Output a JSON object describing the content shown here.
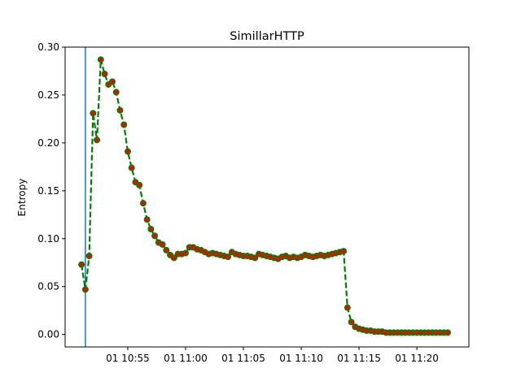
{
  "chart_data": {
    "type": "line",
    "title": "SimillarHTTP",
    "xlabel": "",
    "ylabel": "Entropy",
    "x_unit": "time (HH:MM, minutes)",
    "xlim": [
      "10:49:35",
      "11:24:30"
    ],
    "ylim": [
      -0.013,
      0.3
    ],
    "x_ticks": [
      {
        "t": "10:55",
        "label": "01 10:55"
      },
      {
        "t": "11:00",
        "label": "01 11:00"
      },
      {
        "t": "11:05",
        "label": "01 11:05"
      },
      {
        "t": "11:10",
        "label": "01 11:10"
      },
      {
        "t": "11:15",
        "label": "01 11:15"
      },
      {
        "t": "11:20",
        "label": "01 11:20"
      }
    ],
    "y_ticks": [
      0.0,
      0.05,
      0.1,
      0.15,
      0.2,
      0.25,
      0.3
    ],
    "y_tick_labels": [
      "0.00",
      "0.05",
      "0.10",
      "0.15",
      "0.20",
      "0.25",
      "0.30"
    ],
    "vertical_line": {
      "x": "10:51:20",
      "color": "#1f77b4"
    },
    "series": [
      {
        "line_color": "#008000",
        "line_style": "dashed",
        "marker_fill": "#ff0000",
        "marker_edge": "#008000",
        "points": [
          [
            "10:51:00",
            0.073
          ],
          [
            "10:51:20",
            0.047
          ],
          [
            "10:51:40",
            0.082
          ],
          [
            "10:52:00",
            0.231
          ],
          [
            "10:52:20",
            0.203
          ],
          [
            "10:52:40",
            0.287
          ],
          [
            "10:53:00",
            0.272
          ],
          [
            "10:53:20",
            0.261
          ],
          [
            "10:53:40",
            0.264
          ],
          [
            "10:54:00",
            0.253
          ],
          [
            "10:54:20",
            0.234
          ],
          [
            "10:54:40",
            0.219
          ],
          [
            "10:55:00",
            0.191
          ],
          [
            "10:55:20",
            0.174
          ],
          [
            "10:55:40",
            0.159
          ],
          [
            "10:56:00",
            0.156
          ],
          [
            "10:56:20",
            0.137
          ],
          [
            "10:56:40",
            0.12
          ],
          [
            "10:57:00",
            0.11
          ],
          [
            "10:57:20",
            0.103
          ],
          [
            "10:57:40",
            0.096
          ],
          [
            "10:58:00",
            0.094
          ],
          [
            "10:58:20",
            0.088
          ],
          [
            "10:58:40",
            0.083
          ],
          [
            "10:59:00",
            0.08
          ],
          [
            "10:59:20",
            0.084
          ],
          [
            "10:59:40",
            0.084
          ],
          [
            "11:00:00",
            0.085
          ],
          [
            "11:00:20",
            0.091
          ],
          [
            "11:00:40",
            0.091
          ],
          [
            "11:01:00",
            0.089
          ],
          [
            "11:01:20",
            0.088
          ],
          [
            "11:01:40",
            0.086
          ],
          [
            "11:02:00",
            0.084
          ],
          [
            "11:02:20",
            0.085
          ],
          [
            "11:02:40",
            0.084
          ],
          [
            "11:03:00",
            0.083
          ],
          [
            "11:03:20",
            0.082
          ],
          [
            "11:03:40",
            0.081
          ],
          [
            "11:04:00",
            0.086
          ],
          [
            "11:04:20",
            0.084
          ],
          [
            "11:04:40",
            0.083
          ],
          [
            "11:05:00",
            0.082
          ],
          [
            "11:05:20",
            0.082
          ],
          [
            "11:05:40",
            0.081
          ],
          [
            "11:06:00",
            0.08
          ],
          [
            "11:06:20",
            0.084
          ],
          [
            "11:06:40",
            0.083
          ],
          [
            "11:07:00",
            0.082
          ],
          [
            "11:07:20",
            0.081
          ],
          [
            "11:07:40",
            0.08
          ],
          [
            "11:08:00",
            0.079
          ],
          [
            "11:08:20",
            0.081
          ],
          [
            "11:08:40",
            0.082
          ],
          [
            "11:09:00",
            0.08
          ],
          [
            "11:09:20",
            0.081
          ],
          [
            "11:09:40",
            0.08
          ],
          [
            "11:10:00",
            0.081
          ],
          [
            "11:10:20",
            0.083
          ],
          [
            "11:10:40",
            0.082
          ],
          [
            "11:11:00",
            0.081
          ],
          [
            "11:11:20",
            0.082
          ],
          [
            "11:11:40",
            0.083
          ],
          [
            "11:12:00",
            0.082
          ],
          [
            "11:12:20",
            0.083
          ],
          [
            "11:12:40",
            0.084
          ],
          [
            "11:13:00",
            0.085
          ],
          [
            "11:13:20",
            0.086
          ],
          [
            "11:13:40",
            0.087
          ],
          [
            "11:14:00",
            0.028
          ],
          [
            "11:14:20",
            0.013
          ],
          [
            "11:14:40",
            0.008
          ],
          [
            "11:15:00",
            0.006
          ],
          [
            "11:15:20",
            0.005
          ],
          [
            "11:15:40",
            0.004
          ],
          [
            "11:16:00",
            0.004
          ],
          [
            "11:16:20",
            0.003
          ],
          [
            "11:16:40",
            0.003
          ],
          [
            "11:17:00",
            0.003
          ],
          [
            "11:17:20",
            0.002
          ],
          [
            "11:17:40",
            0.002
          ],
          [
            "11:18:00",
            0.002
          ],
          [
            "11:18:20",
            0.002
          ],
          [
            "11:18:40",
            0.002
          ],
          [
            "11:19:00",
            0.002
          ],
          [
            "11:19:20",
            0.002
          ],
          [
            "11:19:40",
            0.002
          ],
          [
            "11:20:00",
            0.002
          ],
          [
            "11:20:20",
            0.002
          ],
          [
            "11:20:40",
            0.002
          ],
          [
            "11:21:00",
            0.002
          ],
          [
            "11:21:20",
            0.002
          ],
          [
            "11:21:40",
            0.002
          ],
          [
            "11:22:00",
            0.002
          ],
          [
            "11:22:20",
            0.002
          ],
          [
            "11:22:40",
            0.002
          ]
        ]
      }
    ]
  }
}
